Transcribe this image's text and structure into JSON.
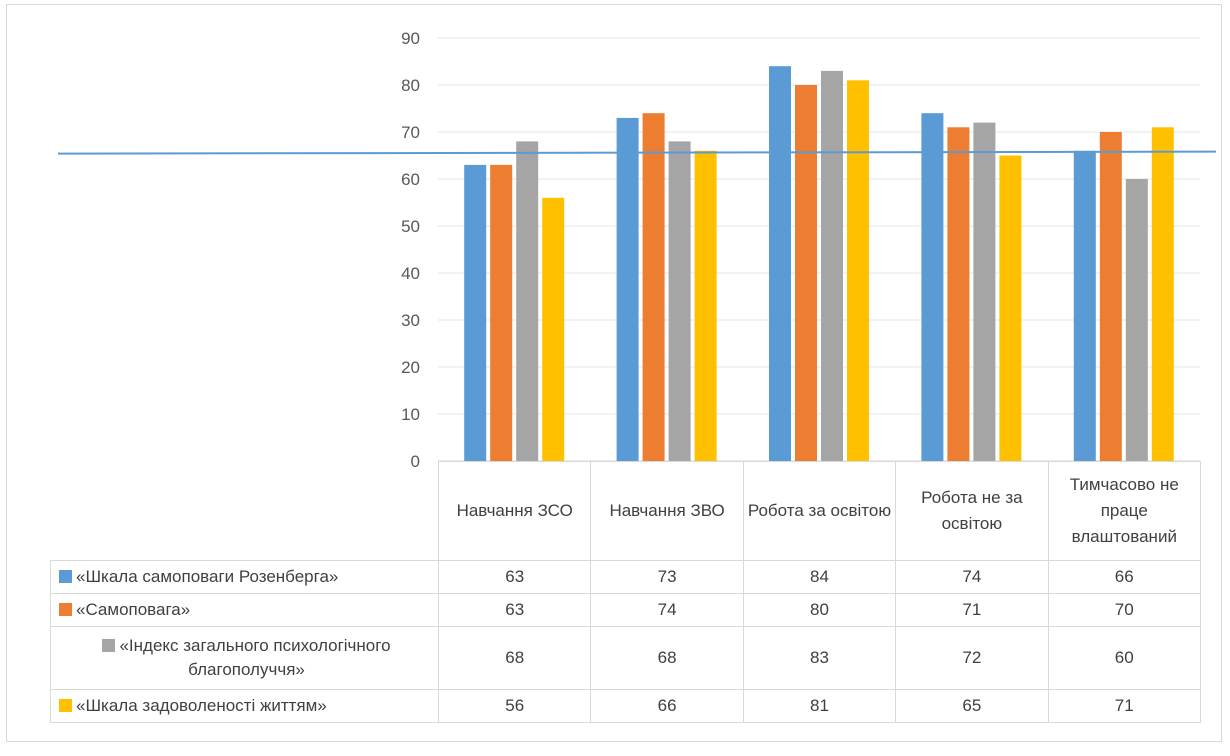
{
  "chart_data": {
    "type": "bar",
    "categories": [
      "Навчання ЗСО",
      "Навчання ЗВО",
      "Робота за освітою",
      "Робота не за освітою",
      "Тимчасово не праце влаштований"
    ],
    "series": [
      {
        "name": "«Шкала самоповаги Розенберга»",
        "color": "#5b9bd5",
        "values": [
          63,
          73,
          84,
          74,
          66
        ]
      },
      {
        "name": "«Самоповага»",
        "color": "#ed7d31",
        "values": [
          63,
          74,
          80,
          71,
          70
        ]
      },
      {
        "name": "«Індекс загального психологічного благополуччя»",
        "color": "#a5a5a5",
        "values": [
          68,
          68,
          83,
          72,
          60
        ]
      },
      {
        "name": "«Шкала задоволеності життям»",
        "color": "#ffc000",
        "values": [
          56,
          66,
          81,
          65,
          71
        ]
      }
    ],
    "ylim": [
      0,
      90
    ],
    "yticks": [
      0,
      10,
      20,
      30,
      40,
      50,
      60,
      70,
      80,
      90
    ],
    "reference_line": {
      "value": 65.5,
      "color": "#5b9bd5"
    },
    "grid": true,
    "legend": "data-table",
    "title": "",
    "xlabel": "",
    "ylabel": ""
  }
}
